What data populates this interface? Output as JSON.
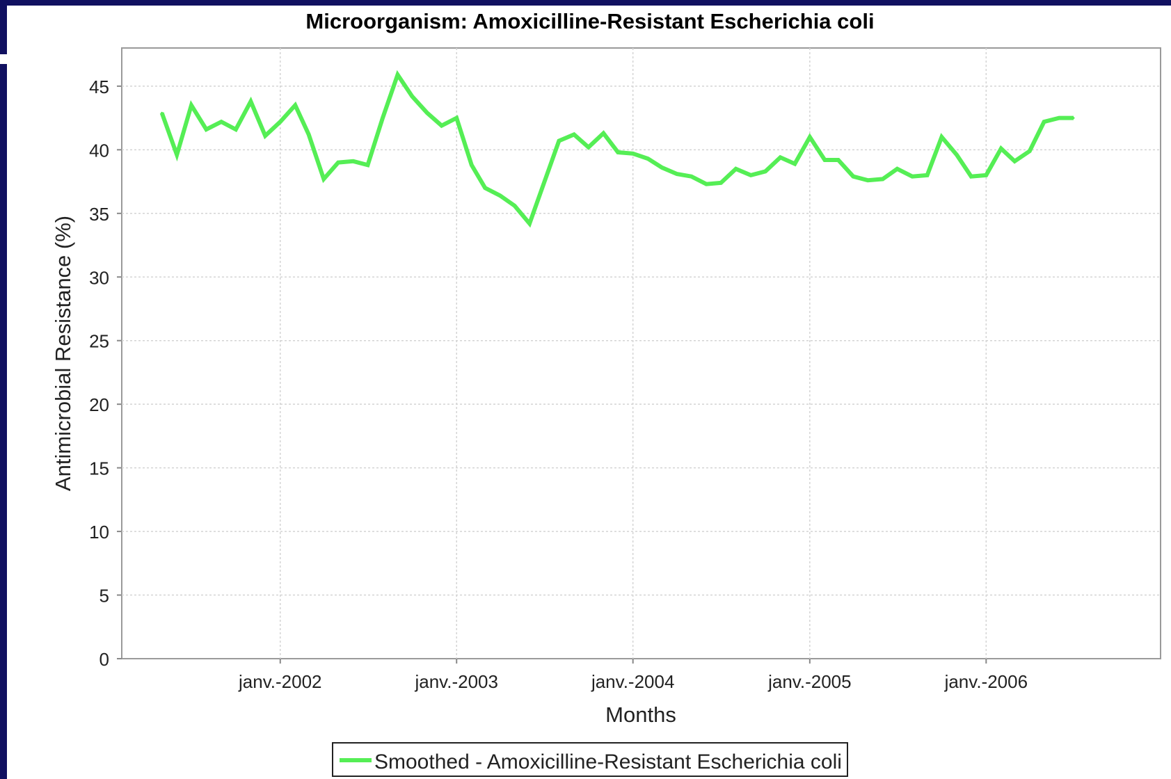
{
  "chart_data": {
    "type": "line",
    "title": "Microorganism: Amoxicilline-Resistant Escherichia coli",
    "xlabel": "Months",
    "ylabel": "Antimicrobial Resistance  (%)",
    "ylim": [
      0,
      48
    ],
    "yticks": [
      0,
      5,
      10,
      15,
      20,
      25,
      30,
      35,
      40,
      45
    ],
    "xlim": [
      "2001-02-07",
      "2006-12-28"
    ],
    "xticks": [
      {
        "date": "2002-01-01",
        "label": "janv.-2002"
      },
      {
        "date": "2003-01-01",
        "label": "janv.-2003"
      },
      {
        "date": "2004-01-01",
        "label": "janv.-2004"
      },
      {
        "date": "2005-01-01",
        "label": "janv.-2005"
      },
      {
        "date": "2006-01-01",
        "label": "janv.-2006"
      }
    ],
    "grid": true,
    "legend_position": "bottom-center",
    "series": [
      {
        "name": "Smoothed - Amoxicilline-Resistant Escherichia coli",
        "color": "#55ee55",
        "x": [
          "2001-05",
          "2001-06",
          "2001-07",
          "2001-08",
          "2001-09",
          "2001-10",
          "2001-11",
          "2001-12",
          "2002-01",
          "2002-02",
          "2002-03",
          "2002-04",
          "2002-05",
          "2002-06",
          "2002-07",
          "2002-08",
          "2002-09",
          "2002-10",
          "2002-11",
          "2002-12",
          "2003-01",
          "2003-02",
          "2003-03",
          "2003-04",
          "2003-05",
          "2003-06",
          "2003-07",
          "2003-08",
          "2003-09",
          "2003-10",
          "2003-11",
          "2003-12",
          "2004-01",
          "2004-02",
          "2004-03",
          "2004-04",
          "2004-05",
          "2004-06",
          "2004-07",
          "2004-08",
          "2004-09",
          "2004-10",
          "2004-11",
          "2004-12",
          "2005-01",
          "2005-02",
          "2005-03",
          "2005-04",
          "2005-05",
          "2005-06",
          "2005-07",
          "2005-08",
          "2005-09",
          "2005-10",
          "2005-11",
          "2005-12",
          "2006-01",
          "2006-02",
          "2006-03",
          "2006-04",
          "2006-05",
          "2006-06",
          "2006-07"
        ],
        "values": [
          42.9,
          39.6,
          43.5,
          41.6,
          42.2,
          41.6,
          43.8,
          41.1,
          42.2,
          43.5,
          41.2,
          37.7,
          39.0,
          39.1,
          38.8,
          42.5,
          45.9,
          44.2,
          42.9,
          41.9,
          42.5,
          38.8,
          37.0,
          36.4,
          35.6,
          34.2,
          37.4,
          40.7,
          41.2,
          40.2,
          41.3,
          39.8,
          39.7,
          39.3,
          38.6,
          38.1,
          37.9,
          37.3,
          37.4,
          38.5,
          38.0,
          38.3,
          39.4,
          38.9,
          41.0,
          39.2,
          39.2,
          37.9,
          37.6,
          37.7,
          38.5,
          37.9,
          38.0,
          41.0,
          39.6,
          37.9,
          38.0,
          40.1,
          39.1,
          39.9,
          42.2,
          42.5,
          42.5
        ]
      }
    ]
  }
}
